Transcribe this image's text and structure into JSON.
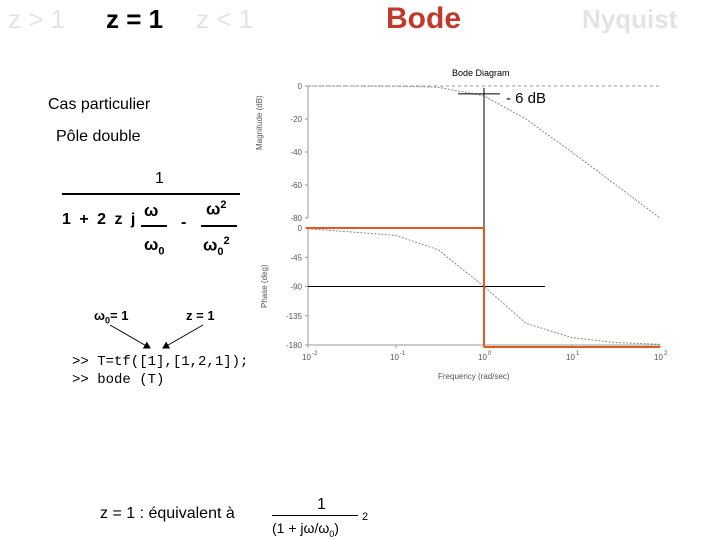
{
  "tabs": [
    {
      "label": "z > 1",
      "state": "inactive"
    },
    {
      "label": "z = 1",
      "state": "bold"
    },
    {
      "label": "z < 1",
      "state": "inactive"
    },
    {
      "label": "Bode",
      "state": "active"
    },
    {
      "label": "Nyquist",
      "state": "inactive"
    }
  ],
  "colors": {
    "accent": "#c0392b",
    "inactive": "#e3e3e3",
    "asymptote": "#e05a1f"
  },
  "left": {
    "cas": "Cas particulier",
    "pole": "Pôle double",
    "numerator": "1",
    "den_prefix": "1 + 2 z j",
    "omega": "ω",
    "omega0": "ω",
    "zero_sub": "0",
    "minus": "-",
    "omega2": "ω",
    "sq": "2",
    "omega0b": "ω",
    "zero_sub_b": "0",
    "sq_b": "2",
    "w0_label": "ω",
    "w0_sub": "0",
    "w0_value": "= 1",
    "z_label": "z = 1",
    "code_line1": ">> T=tf([1],[1,2,1]);",
    "code_line2": ">> bode (T)",
    "equiv_text": "z = 1 : équivalent à",
    "equiv_num": "1",
    "equiv_den": "(1 + jω/ω",
    "equiv_den_sub": "0",
    "equiv_den_close": ")",
    "equiv_exp": "2"
  },
  "annotation": {
    "minus6db": "- 6 dB"
  },
  "plot": {
    "title": "Bode Diagram",
    "mag_ylabel": "Magnitude (dB)",
    "phase_ylabel": "Phase (deg)",
    "xlabel": "Frequency (rad/sec)",
    "mag_ticks": [
      "0",
      "-20",
      "-40",
      "-60",
      "-80"
    ],
    "phase_ticks": [
      "0",
      "-45",
      "-90",
      "-135",
      "-180"
    ],
    "x_ticks": [
      {
        "base": "10",
        "exp": "-2"
      },
      {
        "base": "10",
        "exp": "-1"
      },
      {
        "base": "10",
        "exp": "0"
      },
      {
        "base": "10",
        "exp": "1"
      },
      {
        "base": "10",
        "exp": "2"
      }
    ]
  },
  "chart_data": [
    {
      "type": "line",
      "title": "Bode Diagram",
      "ylabel": "Magnitude (dB)",
      "xlabel": "Frequency (rad/sec)",
      "xscale": "log",
      "xlim": [
        0.01,
        100
      ],
      "ylim": [
        -80,
        0
      ],
      "series": [
        {
          "x": [
            0.01,
            0.1,
            0.3,
            1,
            3,
            10,
            30,
            100
          ],
          "values": [
            0,
            -0.09,
            -0.75,
            -6.02,
            -20,
            -40.1,
            -59.1,
            -80
          ]
        }
      ]
    },
    {
      "type": "line",
      "ylabel": "Phase (deg)",
      "xlabel": "Frequency (rad/sec)",
      "xscale": "log",
      "xlim": [
        0.01,
        100
      ],
      "ylim": [
        -180,
        0
      ],
      "series": [
        {
          "x": [
            0.01,
            0.1,
            0.3,
            1,
            3,
            10,
            30,
            100
          ],
          "values": [
            -1.1,
            -11.4,
            -33.4,
            -90,
            -146.6,
            -168.6,
            -176.2,
            -178.9
          ]
        }
      ]
    }
  ]
}
